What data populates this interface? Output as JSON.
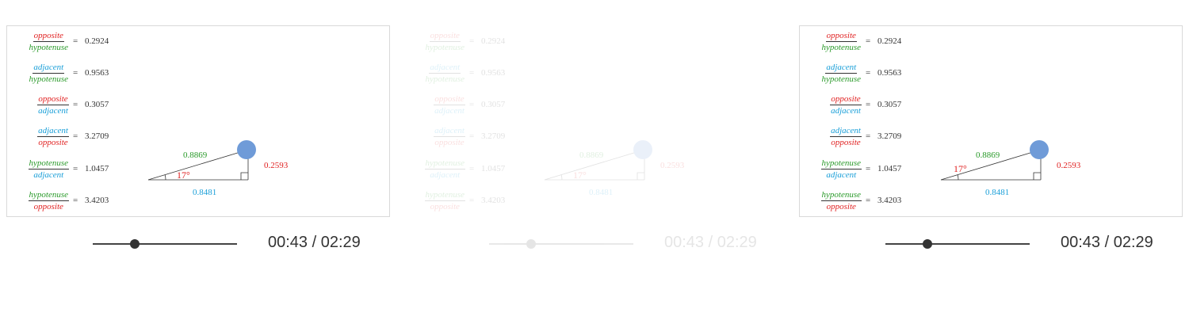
{
  "colors": {
    "opposite": "#e02020",
    "adjacent": "#1a9fd8",
    "hypotenuse": "#2a9a2a",
    "handle": "#6f9bd8",
    "line": "#333333"
  },
  "ratios": [
    {
      "num": "opposite",
      "den": "hypotenuse",
      "num_role": "opposite",
      "den_role": "hypotenuse",
      "value": "0.2924"
    },
    {
      "num": "adjacent",
      "den": "hypotenuse",
      "num_role": "adjacent",
      "den_role": "hypotenuse",
      "value": "0.9563"
    },
    {
      "num": "opposite",
      "den": "adjacent",
      "num_role": "opposite",
      "den_role": "adjacent",
      "value": "0.3057"
    },
    {
      "num": "adjacent",
      "den": "opposite",
      "num_role": "adjacent",
      "den_role": "opposite",
      "value": "3.2709"
    },
    {
      "num": "hypotenuse",
      "den": "adjacent",
      "num_role": "hypotenuse",
      "den_role": "adjacent",
      "value": "1.0457"
    },
    {
      "num": "hypotenuse",
      "den": "opposite",
      "num_role": "hypotenuse",
      "den_role": "opposite",
      "value": "3.4203"
    }
  ],
  "eq_sign": "=",
  "triangle": {
    "hypotenuse_label": "0.8869",
    "opposite_label": "0.2593",
    "adjacent_label": "0.8481",
    "angle_label": "17°"
  },
  "player": {
    "time_label": "00:43 / 02:29",
    "progress": 0.289
  }
}
